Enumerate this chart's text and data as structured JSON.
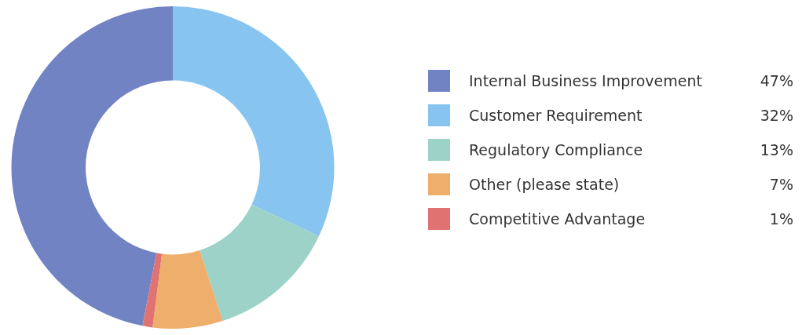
{
  "chart_data": {
    "type": "donut",
    "categories": [
      "Internal Business Improvement",
      "Customer Requirement",
      "Regulatory Compliance",
      "Other (please state)",
      "Competitive Advantage"
    ],
    "values": [
      47,
      32,
      13,
      7,
      1
    ],
    "value_labels": [
      "47%",
      "32%",
      "13%",
      "7%",
      "1%"
    ],
    "colors": [
      "#7283c4",
      "#88c4f0",
      "#9dd2c8",
      "#eeae6c",
      "#e07272"
    ],
    "legend": "right"
  }
}
